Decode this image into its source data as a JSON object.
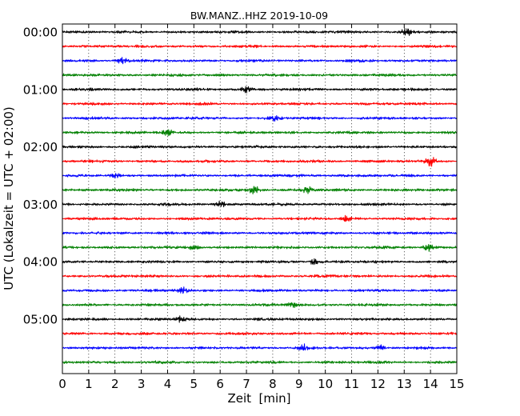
{
  "chart_data": {
    "type": "line",
    "chart_kind": "helicorder",
    "title": "BW.MANZ..HHZ 2019-10-09",
    "xlabel": "Zeit  [min]",
    "ylabel": "UTC (Lokalzeit = UTC + 02:00)",
    "xlim": [
      0,
      15
    ],
    "x_ticks": [
      0,
      1,
      2,
      3,
      4,
      5,
      6,
      7,
      8,
      9,
      10,
      11,
      12,
      13,
      14,
      15
    ],
    "y_tick_labels": [
      "00:00",
      "01:00",
      "02:00",
      "03:00",
      "04:00",
      "05:00"
    ],
    "row_interval_min": 15,
    "rows_per_hour": 4,
    "trace_count": 24,
    "vertical_grid": "dotted, every 1 min",
    "series_colors": [
      "#000000",
      "#ff0000",
      "#0000ff",
      "#008000"
    ],
    "events": [
      {
        "trace": 0,
        "minute": 13.1,
        "amplitude": 1.6
      },
      {
        "trace": 2,
        "minute": 2.3,
        "amplitude": 1.5
      },
      {
        "trace": 4,
        "minute": 7.0,
        "amplitude": 1.3
      },
      {
        "trace": 6,
        "minute": 8.1,
        "amplitude": 1.4
      },
      {
        "trace": 7,
        "minute": 4.0,
        "amplitude": 1.3
      },
      {
        "trace": 9,
        "minute": 14.0,
        "amplitude": 2.2
      },
      {
        "trace": 10,
        "minute": 2.0,
        "amplitude": 1.4
      },
      {
        "trace": 11,
        "minute": 7.3,
        "amplitude": 2.6
      },
      {
        "trace": 11,
        "minute": 9.3,
        "amplitude": 1.6
      },
      {
        "trace": 12,
        "minute": 6.0,
        "amplitude": 1.4
      },
      {
        "trace": 13,
        "minute": 10.8,
        "amplitude": 1.4
      },
      {
        "trace": 15,
        "minute": 13.9,
        "amplitude": 1.8
      },
      {
        "trace": 15,
        "minute": 5.0,
        "amplitude": 1.3
      },
      {
        "trace": 16,
        "minute": 9.6,
        "amplitude": 1.4
      },
      {
        "trace": 18,
        "minute": 4.6,
        "amplitude": 1.4
      },
      {
        "trace": 19,
        "minute": 8.8,
        "amplitude": 1.5
      },
      {
        "trace": 20,
        "minute": 4.5,
        "amplitude": 1.4
      },
      {
        "trace": 22,
        "minute": 9.2,
        "amplitude": 1.4
      },
      {
        "trace": 22,
        "minute": 12.1,
        "amplitude": 1.3
      }
    ]
  }
}
